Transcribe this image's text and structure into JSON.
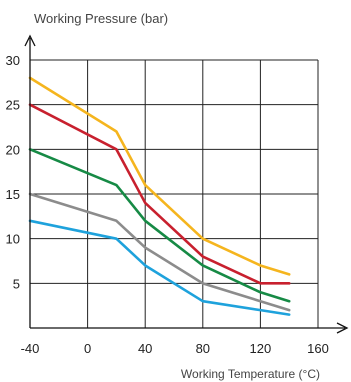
{
  "chart_data": {
    "type": "line",
    "title": "",
    "ylabel": "Working Pressure (bar)",
    "xlabel": "Working Temperature (°C)",
    "x_ticks": [
      -40,
      0,
      40,
      80,
      120,
      160
    ],
    "y_ticks": [
      5,
      10,
      15,
      20,
      25,
      30
    ],
    "xlim": [
      -40,
      160
    ],
    "ylim": [
      0,
      30
    ],
    "grid": true,
    "series": [
      {
        "color": "#f5b51e",
        "x": [
          -40,
          20,
          40,
          80,
          120,
          140
        ],
        "values": [
          28,
          22,
          16,
          10,
          7,
          6
        ]
      },
      {
        "color": "#c8202e",
        "x": [
          -40,
          20,
          40,
          80,
          120,
          140
        ],
        "values": [
          25,
          20,
          14,
          8,
          5,
          5
        ]
      },
      {
        "color": "#168a45",
        "x": [
          -40,
          20,
          40,
          80,
          120,
          140
        ],
        "values": [
          20,
          16,
          12,
          7,
          4,
          3
        ]
      },
      {
        "color": "#8c8c8c",
        "x": [
          -40,
          20,
          40,
          80,
          120,
          140
        ],
        "values": [
          15,
          12,
          9,
          5,
          3,
          2
        ]
      },
      {
        "color": "#1ea2dc",
        "x": [
          -40,
          20,
          40,
          80,
          120,
          140
        ],
        "values": [
          12,
          10,
          7,
          3,
          2,
          1.5
        ]
      }
    ]
  }
}
